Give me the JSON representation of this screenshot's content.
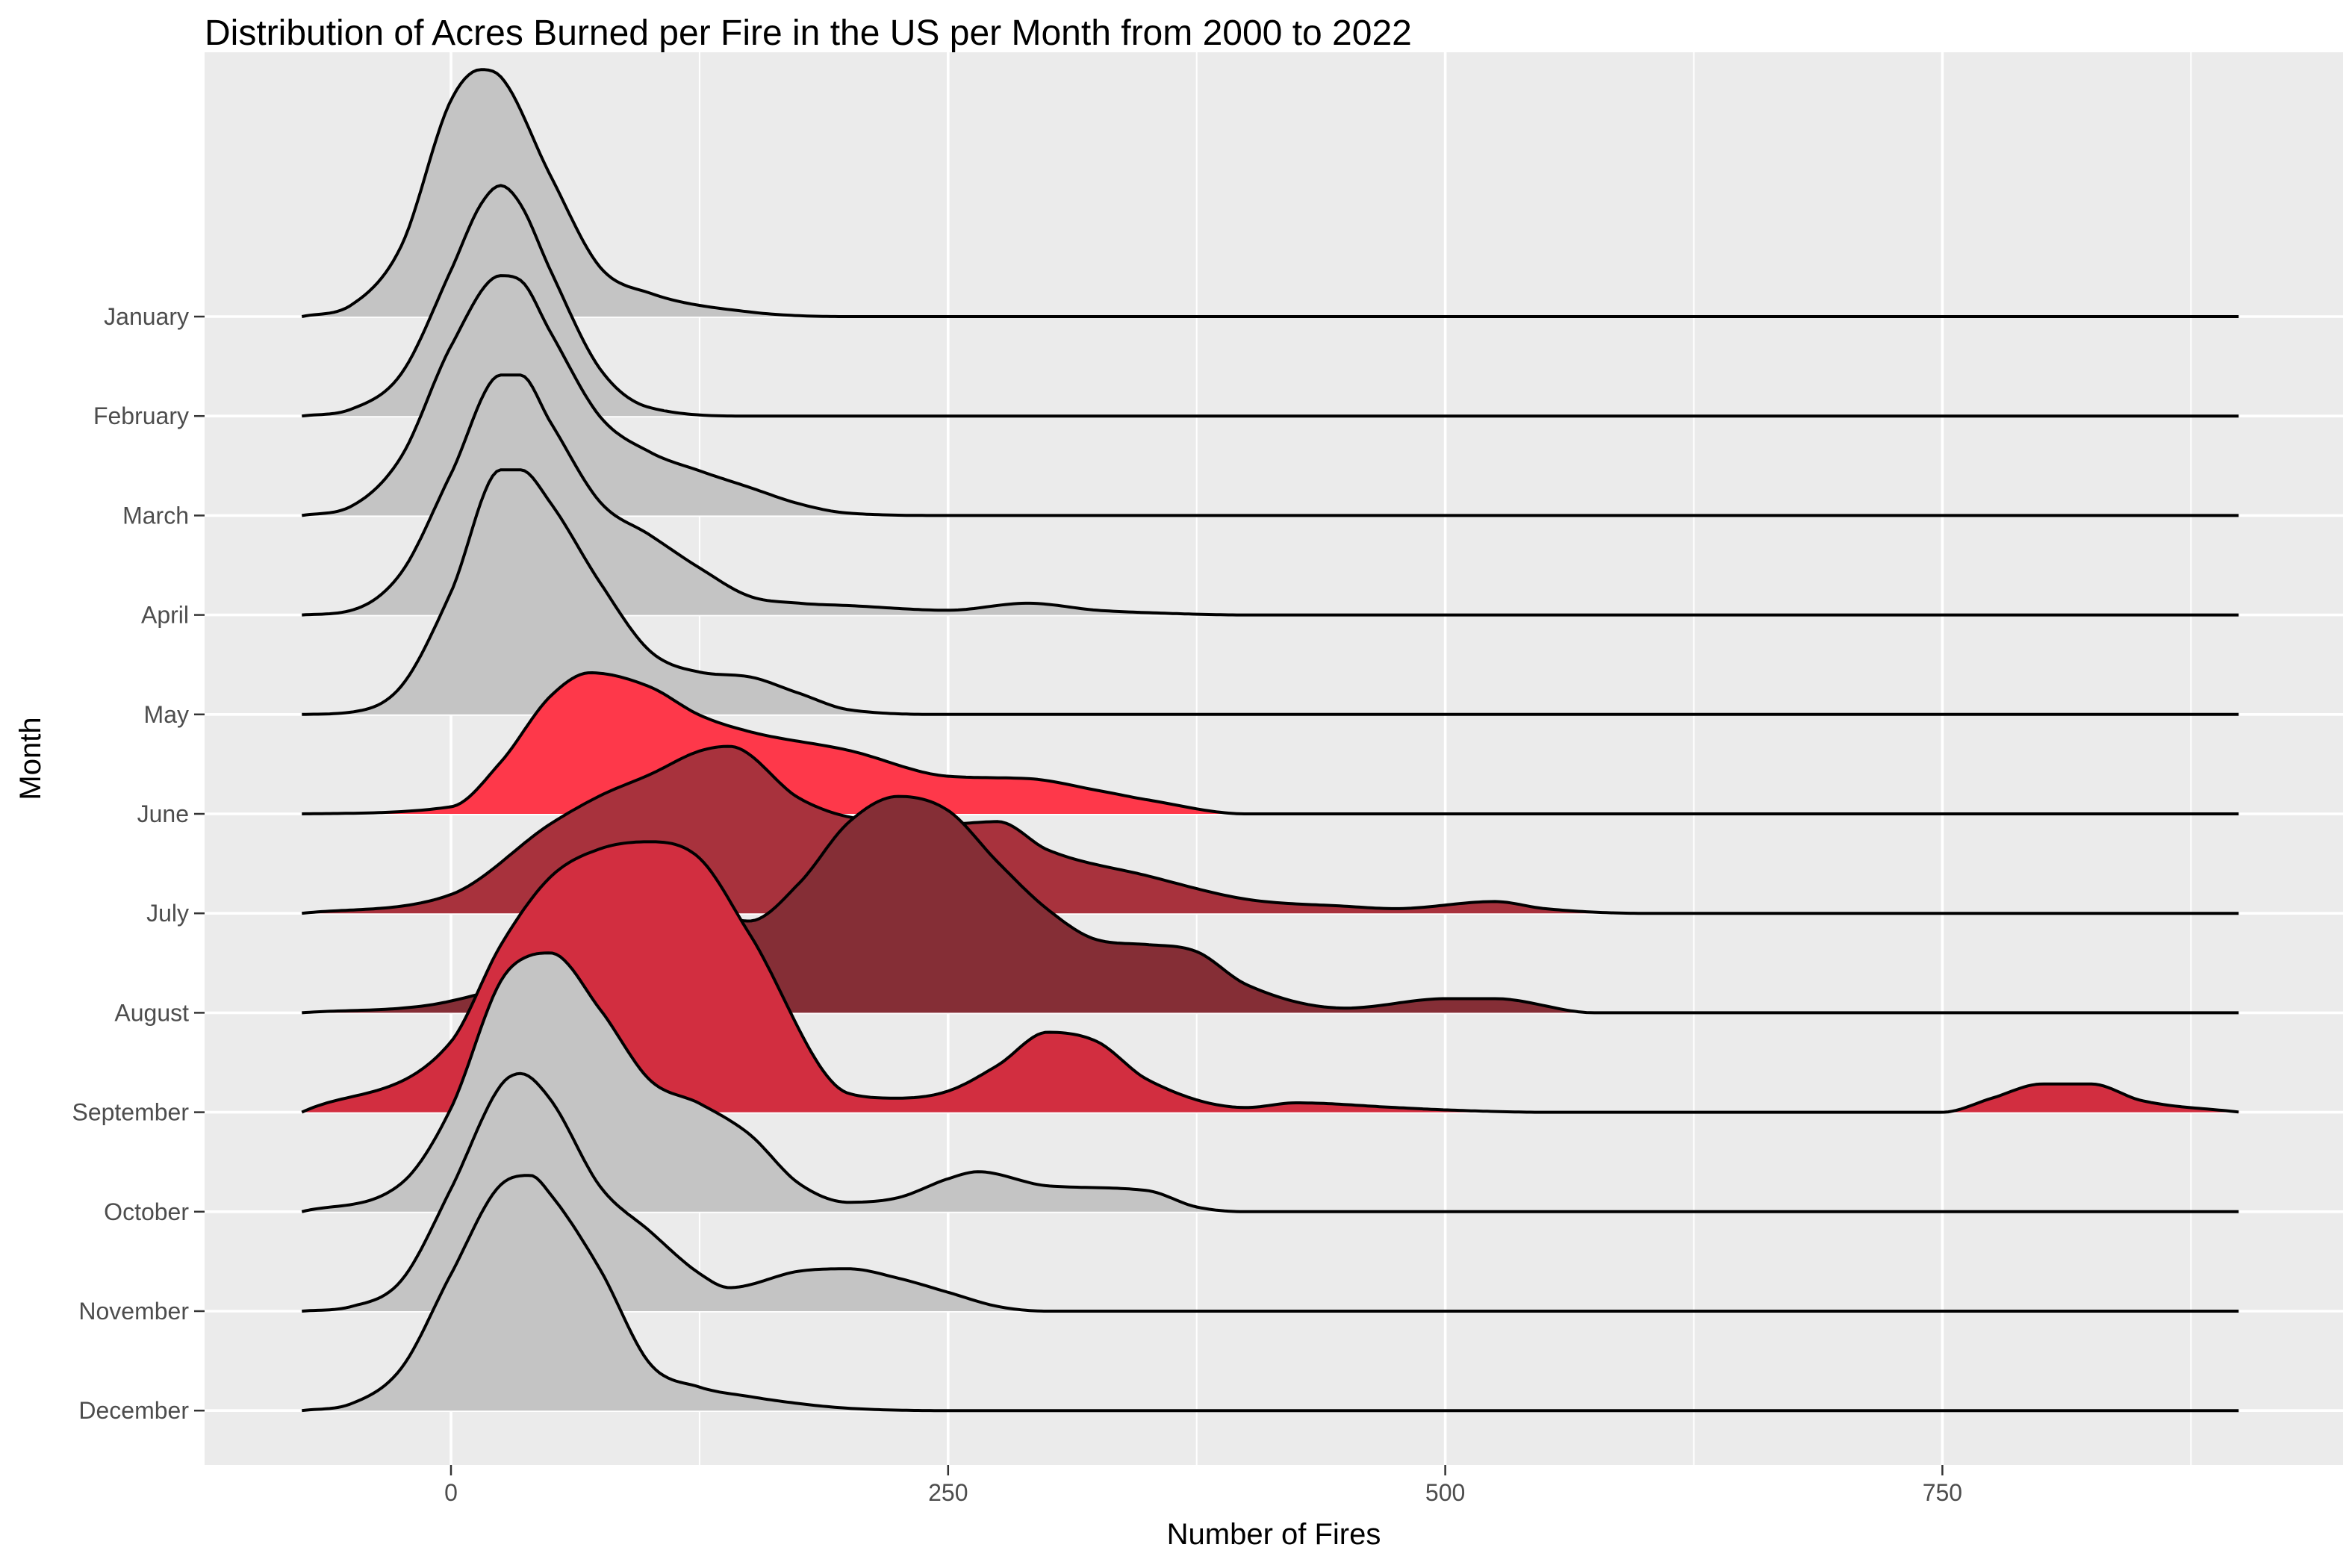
{
  "chart_data": {
    "type": "area",
    "subtype": "ridgeline",
    "title": "Distribution of Acres Burned per Fire in the US per Month from 2000 to 2022",
    "xlabel": "Number of Fires",
    "ylabel": "Month",
    "x_ticks": [
      0,
      250,
      500,
      750
    ],
    "xlim": [
      -125,
      950
    ],
    "grid": true,
    "legend": "none",
    "colors": {
      "panel": "#ebebeb",
      "grid": "#ffffff",
      "outline": "#000000"
    },
    "categories": [
      "January",
      "February",
      "March",
      "April",
      "May",
      "June",
      "July",
      "August",
      "September",
      "October",
      "November",
      "December"
    ],
    "series": [
      {
        "name": "January",
        "fill": "#c4c4c4",
        "x": [
          -75,
          -50,
          -25,
          0,
          15,
          25,
          50,
          75,
          100,
          150,
          200,
          300,
          900
        ],
        "y": [
          0,
          0.25,
          1.5,
          4.6,
          5.25,
          5.1,
          3.0,
          1.05,
          0.5,
          0.1,
          0,
          0,
          0
        ]
      },
      {
        "name": "February",
        "fill": "#c4c4c4",
        "x": [
          -75,
          -50,
          -25,
          0,
          15,
          25,
          35,
          50,
          75,
          100,
          150,
          200,
          900
        ],
        "y": [
          0,
          0.15,
          0.9,
          3.1,
          4.5,
          4.9,
          4.5,
          3.1,
          1.0,
          0.18,
          0,
          0,
          0
        ]
      },
      {
        "name": "March",
        "fill": "#c4c4c4",
        "x": [
          -75,
          -50,
          -25,
          0,
          25,
          35,
          50,
          75,
          100,
          125,
          150,
          175,
          200,
          250,
          900
        ],
        "y": [
          0,
          0.2,
          1.25,
          3.6,
          5.1,
          5.0,
          3.9,
          2.1,
          1.35,
          0.95,
          0.6,
          0.25,
          0.05,
          0,
          0
        ]
      },
      {
        "name": "April",
        "fill": "#c4c4c4",
        "x": [
          -75,
          -50,
          -25,
          0,
          25,
          35,
          50,
          75,
          100,
          125,
          150,
          175,
          200,
          250,
          290,
          325,
          350,
          400,
          900
        ],
        "y": [
          0,
          0.1,
          0.9,
          3.0,
          5.1,
          5.1,
          4.1,
          2.4,
          1.7,
          1.0,
          0.4,
          0.25,
          0.2,
          0.1,
          0.25,
          0.1,
          0.05,
          0,
          0
        ]
      },
      {
        "name": "May",
        "fill": "#c4c4c4",
        "x": [
          -75,
          -50,
          -25,
          0,
          25,
          35,
          50,
          75,
          100,
          125,
          150,
          175,
          200,
          250,
          900
        ],
        "y": [
          0,
          0.05,
          0.6,
          2.6,
          5.2,
          5.2,
          4.5,
          2.8,
          1.35,
          0.9,
          0.8,
          0.45,
          0.1,
          0,
          0
        ]
      },
      {
        "name": "June",
        "fill": "#fe384a",
        "x": [
          -75,
          0,
          25,
          50,
          70,
          100,
          125,
          150,
          200,
          250,
          290,
          325,
          350,
          400,
          900
        ],
        "y": [
          0,
          0.15,
          1.1,
          2.5,
          3.0,
          2.7,
          2.1,
          1.75,
          1.35,
          0.8,
          0.75,
          0.5,
          0.3,
          0,
          0
        ]
      },
      {
        "name": "July",
        "fill": "#a8323d",
        "x": [
          -75,
          0,
          50,
          75,
          100,
          125,
          140,
          175,
          200,
          250,
          275,
          300,
          350,
          400,
          450,
          475,
          525,
          550,
          600,
          900
        ],
        "y": [
          0,
          0.4,
          1.9,
          2.5,
          2.95,
          3.45,
          3.55,
          2.45,
          2.05,
          1.9,
          1.95,
          1.35,
          0.8,
          0.3,
          0.15,
          0.1,
          0.25,
          0.1,
          0,
          0
        ]
      },
      {
        "name": "August",
        "fill": "#852e36",
        "x": [
          -75,
          0,
          50,
          75,
          100,
          125,
          150,
          175,
          200,
          225,
          250,
          275,
          300,
          325,
          350,
          375,
          400,
          450,
          500,
          525,
          575,
          900
        ],
        "y": [
          0,
          0.25,
          1.1,
          2.2,
          2.9,
          2.3,
          1.95,
          2.75,
          4.05,
          4.6,
          4.3,
          3.2,
          2.2,
          1.55,
          1.45,
          1.3,
          0.6,
          0.1,
          0.3,
          0.3,
          0,
          0
        ]
      },
      {
        "name": "September",
        "fill": "#d22e40",
        "x": [
          -75,
          0,
          25,
          50,
          75,
          100,
          125,
          150,
          200,
          225,
          250,
          275,
          300,
          325,
          350,
          400,
          425,
          475,
          500,
          550,
          750,
          775,
          800,
          825,
          850,
          900
        ],
        "y": [
          0,
          1.5,
          3.55,
          5.0,
          5.6,
          5.75,
          5.4,
          3.8,
          0.4,
          0.3,
          0.45,
          1.0,
          1.7,
          1.5,
          0.7,
          0.1,
          0.2,
          0.1,
          0.05,
          0,
          0,
          0.3,
          0.6,
          0.6,
          0.25,
          0
        ]
      },
      {
        "name": "October",
        "fill": "#c4c4c4",
        "x": [
          -75,
          -25,
          0,
          25,
          40,
          50,
          75,
          100,
          125,
          150,
          175,
          200,
          225,
          250,
          265,
          300,
          350,
          375,
          400,
          900
        ],
        "y": [
          0,
          0.6,
          2.2,
          4.9,
          5.45,
          5.5,
          4.3,
          2.8,
          2.3,
          1.65,
          0.6,
          0.2,
          0.3,
          0.7,
          0.85,
          0.55,
          0.45,
          0.1,
          0,
          0
        ]
      },
      {
        "name": "November",
        "fill": "#c4c4c4",
        "x": [
          -75,
          -50,
          -25,
          0,
          25,
          35,
          50,
          75,
          100,
          125,
          140,
          175,
          200,
          225,
          250,
          275,
          300,
          900
        ],
        "y": [
          0,
          0.1,
          0.65,
          2.6,
          4.8,
          5.05,
          4.5,
          2.65,
          1.7,
          0.8,
          0.5,
          0.85,
          0.9,
          0.7,
          0.4,
          0.1,
          0,
          0
        ]
      },
      {
        "name": "December",
        "fill": "#c4c4c4",
        "x": [
          -75,
          -50,
          -25,
          0,
          25,
          40,
          50,
          75,
          100,
          125,
          150,
          175,
          200,
          250,
          900
        ],
        "y": [
          0,
          0.15,
          0.9,
          2.9,
          4.8,
          5.0,
          4.6,
          3.0,
          1.0,
          0.5,
          0.3,
          0.15,
          0.05,
          0,
          0
        ]
      }
    ]
  }
}
